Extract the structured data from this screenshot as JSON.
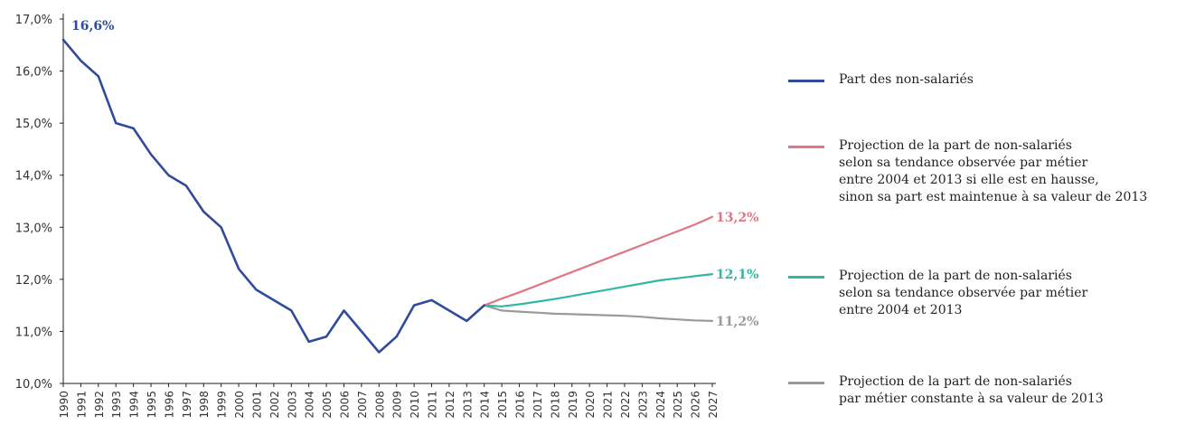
{
  "colors": {
    "blue": "#2f4b9c",
    "pink": "#e07685",
    "teal": "#32b7a7",
    "gray": "#9a9a9a",
    "axis": "#222222"
  },
  "chart_data": {
    "type": "line",
    "x": [
      "1990",
      "1991",
      "1992",
      "1993",
      "1994",
      "1995",
      "1996",
      "1997",
      "1998",
      "1999",
      "2000",
      "2001",
      "2002",
      "2003",
      "2004",
      "2005",
      "2006",
      "2007",
      "2008",
      "2009",
      "2010",
      "2011",
      "2012",
      "2013",
      "2014",
      "2015",
      "2016",
      "2017",
      "2018",
      "2019",
      "2020",
      "2021",
      "2022",
      "2023",
      "2024",
      "2025",
      "2026",
      "2027"
    ],
    "ylim": [
      10.0,
      17.0
    ],
    "yticks": [
      "10,0%",
      "11,0%",
      "12,0%",
      "13,0%",
      "14,0%",
      "15,0%",
      "16,0%",
      "17,0%"
    ],
    "grid": false,
    "legend_position": "right",
    "series": [
      {
        "name": "Part des non-salariés",
        "color": "#2f4b9c",
        "x": [
          "1990",
          "1991",
          "1992",
          "1993",
          "1994",
          "1995",
          "1996",
          "1997",
          "1998",
          "1999",
          "2000",
          "2001",
          "2002",
          "2003",
          "2004",
          "2005",
          "2006",
          "2007",
          "2008",
          "2009",
          "2010",
          "2011",
          "2012",
          "2013",
          "2014"
        ],
        "values": [
          16.6,
          16.2,
          15.9,
          15.0,
          14.9,
          14.4,
          14.0,
          13.8,
          13.3,
          13.0,
          12.2,
          11.8,
          11.6,
          11.4,
          10.8,
          10.9,
          11.4,
          11.0,
          10.6,
          10.9,
          11.5,
          11.6,
          11.4,
          11.2,
          11.5
        ],
        "start_label": "16,6%"
      },
      {
        "name": "Projection de la part de non-salariés\nselon sa tendance observée par métier\nentre 2004 et 2013 si elle est en hausse,\nsinon sa part est maintenue à sa valeur de 2013",
        "color": "#e07685",
        "x": [
          "2014",
          "2015",
          "2016",
          "2017",
          "2018",
          "2019",
          "2020",
          "2021",
          "2022",
          "2023",
          "2024",
          "2025",
          "2026",
          "2027"
        ],
        "values": [
          11.5,
          11.63,
          11.75,
          11.88,
          12.01,
          12.14,
          12.27,
          12.4,
          12.53,
          12.66,
          12.79,
          12.92,
          13.05,
          13.2
        ],
        "end_label": "13,2%"
      },
      {
        "name": "Projection de la part de non-salariés\nselon sa tendance observée par métier\nentre 2004 et 2013",
        "color": "#32b7a7",
        "x": [
          "2014",
          "2015",
          "2016",
          "2017",
          "2018",
          "2019",
          "2020",
          "2021",
          "2022",
          "2023",
          "2024",
          "2025",
          "2026",
          "2027"
        ],
        "values": [
          11.5,
          11.48,
          11.52,
          11.57,
          11.62,
          11.68,
          11.74,
          11.8,
          11.86,
          11.92,
          11.98,
          12.02,
          12.06,
          12.1
        ],
        "end_label": "12,1%"
      },
      {
        "name": "Projection de la part de non-salariés\npar métier constante à sa valeur de 2013",
        "color": "#9a9a9a",
        "x": [
          "2014",
          "2015",
          "2016",
          "2017",
          "2018",
          "2019",
          "2020",
          "2021",
          "2022",
          "2023",
          "2024",
          "2025",
          "2026",
          "2027"
        ],
        "values": [
          11.5,
          11.4,
          11.38,
          11.36,
          11.34,
          11.33,
          11.32,
          11.31,
          11.3,
          11.28,
          11.25,
          11.23,
          11.21,
          11.2
        ],
        "end_label": "11,2%"
      }
    ]
  }
}
